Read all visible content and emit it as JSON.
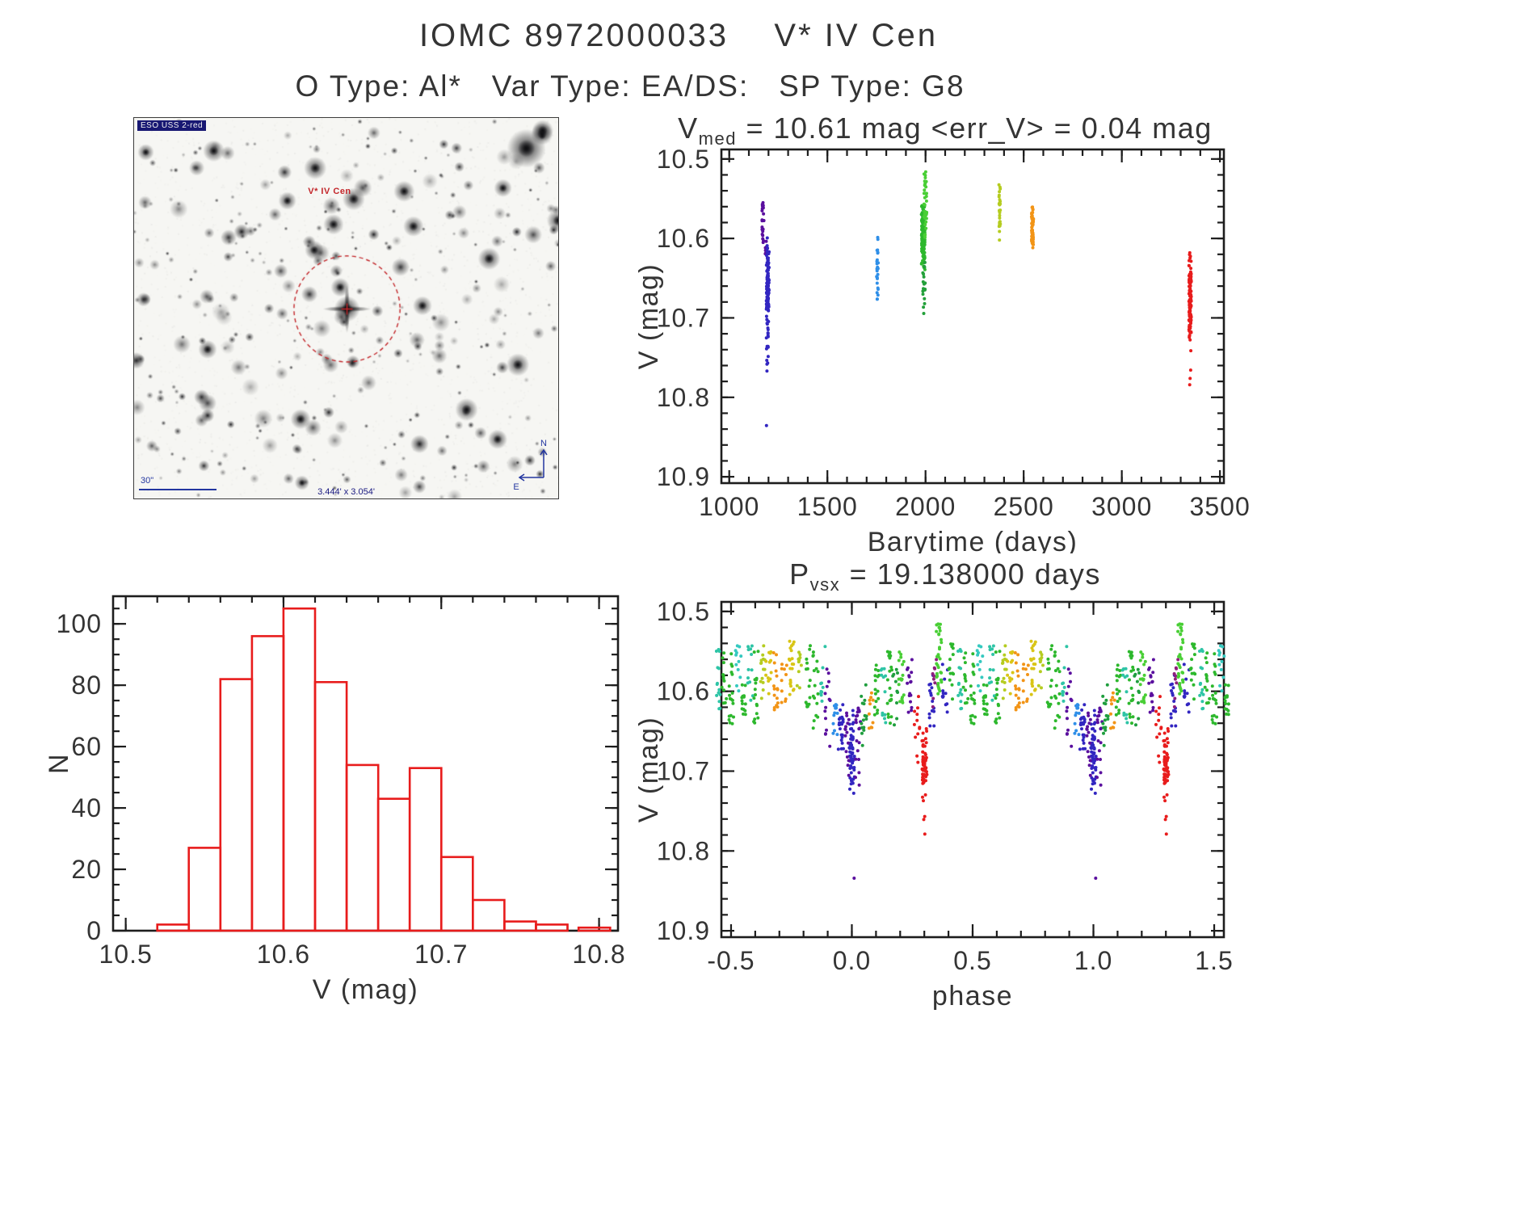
{
  "page": {
    "title": "IOMC 8972000033    V* IV Cen",
    "subtitle": "O Type: Al*   Var Type: EA/DS:   SP Type: G8"
  },
  "finding_chart": {
    "survey_label": "ESO USS 2-red",
    "target_label": "V* IV Cen",
    "scale_label": "30\"",
    "fov_label": "3.444' x 3.054'",
    "north_label": "N",
    "east_label": "E"
  },
  "chart_data": [
    {
      "id": "lightcurve",
      "type": "scatter",
      "title": {
        "pre": "V",
        "sub": "med",
        "post": " = 10.61 mag <err_V> = 0.04 mag"
      },
      "xlabel": "Barytime (days)",
      "ylabel": "V (mag)",
      "xlim": [
        960,
        3520
      ],
      "ylim": [
        10.488,
        10.908
      ],
      "y_inverted_magnitudes": true,
      "grid": false,
      "xticks": [
        1000,
        1500,
        2000,
        2500,
        3000,
        3500
      ],
      "xtick_labels": [
        "1000",
        "1500",
        "2000",
        "2500",
        "3000",
        "3500"
      ],
      "yticks": [
        10.5,
        10.6,
        10.7,
        10.8,
        10.9
      ],
      "ytick_labels": [
        "10.5",
        "10.6",
        "10.7",
        "10.8",
        "10.9"
      ],
      "x_minor": 100,
      "y_minor": 0.02,
      "median_V_mag": 10.61,
      "mean_err_V_mag": 0.04,
      "clusters": [
        {
          "x": 1172,
          "sx": 5,
          "y0": 10.555,
          "y1": 10.607,
          "n": 22,
          "color": "#5a0f9e",
          "dist": "uniform"
        },
        {
          "x": 1186,
          "sx": 3,
          "y0": 10.6,
          "y1": 10.625,
          "n": 6,
          "color": "#5a0f9e",
          "dist": "uniform"
        },
        {
          "x": 1196,
          "sx": 7,
          "y0": 10.585,
          "y1": 10.75,
          "n": 125,
          "color": "#3226c1",
          "dist": "center"
        },
        {
          "x": 1194,
          "sx": 5,
          "y0": 10.7,
          "y1": 10.77,
          "n": 10,
          "color": "#3226c1",
          "dist": "uniform"
        },
        {
          "x": 1190,
          "sx": 1,
          "y0": 10.833,
          "y1": 10.837,
          "n": 1,
          "color": "#3226c1",
          "dist": "uniform"
        },
        {
          "x": 1755,
          "sx": 4,
          "y0": 10.597,
          "y1": 10.683,
          "n": 26,
          "color": "#2f8fe8",
          "dist": "uniform"
        },
        {
          "x": 1988,
          "sx": 9,
          "y0": 10.535,
          "y1": 10.655,
          "n": 150,
          "color": "#2db82d",
          "dist": "center"
        },
        {
          "x": 1999,
          "sx": 7,
          "y0": 10.515,
          "y1": 10.6,
          "n": 40,
          "color": "#49cf35",
          "dist": "uniform"
        },
        {
          "x": 1992,
          "sx": 6,
          "y0": 10.63,
          "y1": 10.695,
          "n": 18,
          "color": "#23a03a",
          "dist": "uniform"
        },
        {
          "x": 2378,
          "sx": 4,
          "y0": 10.53,
          "y1": 10.603,
          "n": 30,
          "color": "#b5cc20",
          "dist": "uniform"
        },
        {
          "x": 2545,
          "sx": 5,
          "y0": 10.54,
          "y1": 10.632,
          "n": 55,
          "color": "#f29416",
          "dist": "center"
        },
        {
          "x": 3348,
          "sx": 6,
          "y0": 10.6,
          "y1": 10.755,
          "n": 115,
          "color": "#e81c1c",
          "dist": "center"
        },
        {
          "x": 3348,
          "sx": 3,
          "y0": 10.755,
          "y1": 10.785,
          "n": 3,
          "color": "#e81c1c",
          "dist": "uniform"
        }
      ]
    },
    {
      "id": "histogram",
      "type": "bar",
      "title": "",
      "xlabel": "V (mag)",
      "ylabel": "N",
      "xlim": [
        10.492,
        10.812
      ],
      "ylim": [
        109,
        0
      ],
      "grid": false,
      "xticks": [
        10.5,
        10.6,
        10.7,
        10.8
      ],
      "xtick_labels": [
        "10.5",
        "10.6",
        "10.7",
        "10.8"
      ],
      "yticks": [
        0,
        20,
        40,
        60,
        80,
        100
      ],
      "ytick_labels": [
        "0",
        "20",
        "40",
        "60",
        "80",
        "100"
      ],
      "x_minor": 0.02,
      "y_minor": 5,
      "bar_color": "#e81c1c",
      "bin_width": 0.02,
      "bins": [
        {
          "x0": 10.52,
          "n": 2
        },
        {
          "x0": 10.54,
          "n": 27
        },
        {
          "x0": 10.56,
          "n": 82
        },
        {
          "x0": 10.58,
          "n": 96
        },
        {
          "x0": 10.6,
          "n": 105
        },
        {
          "x0": 10.62,
          "n": 81
        },
        {
          "x0": 10.64,
          "n": 54
        },
        {
          "x0": 10.66,
          "n": 43
        },
        {
          "x0": 10.68,
          "n": 53
        },
        {
          "x0": 10.7,
          "n": 24
        },
        {
          "x0": 10.72,
          "n": 10
        },
        {
          "x0": 10.74,
          "n": 3
        },
        {
          "x0": 10.76,
          "n": 2
        },
        {
          "x0": 10.787,
          "n": 1
        }
      ]
    },
    {
      "id": "phase-folded",
      "type": "scatter",
      "title": {
        "pre": "P",
        "sub": "vsx",
        "post": " = 19.138000 days"
      },
      "period_days": 19.138,
      "xlabel": "phase",
      "ylabel": "V (mag)",
      "xlim": [
        -0.54,
        1.54
      ],
      "ylim": [
        10.488,
        10.908
      ],
      "grid": false,
      "xticks": [
        -0.5,
        0.0,
        0.5,
        1.0,
        1.5
      ],
      "xtick_labels": [
        "-0.5",
        "0.0",
        "0.5",
        "1.0",
        "1.5"
      ],
      "yticks": [
        10.5,
        10.6,
        10.7,
        10.8,
        10.9
      ],
      "ytick_labels": [
        "10.5",
        "10.6",
        "10.7",
        "10.8",
        "10.9"
      ],
      "x_minor": 0.1,
      "y_minor": 0.02,
      "strips": [
        {
          "p": 0.0,
          "y0": 10.6,
          "y1": 10.745,
          "n": 55,
          "color": "#3226c1",
          "dist": "center"
        },
        {
          "p": 0.005,
          "y0": 10.833,
          "y1": 10.837,
          "n": 1,
          "color": "#5a0f9e",
          "dist": "uniform"
        },
        {
          "p": 0.025,
          "y0": 10.61,
          "y1": 10.72,
          "n": 20,
          "color": "#5a0f9e",
          "dist": "uniform"
        },
        {
          "p": 0.05,
          "y0": 10.59,
          "y1": 10.67,
          "n": 15,
          "color": "#1f9e3e",
          "dist": "uniform"
        },
        {
          "p": 0.08,
          "y0": 10.6,
          "y1": 10.66,
          "n": 10,
          "color": "#f29416",
          "dist": "uniform"
        },
        {
          "p": 0.105,
          "y0": 10.56,
          "y1": 10.63,
          "n": 16,
          "color": "#2db82d",
          "dist": "uniform"
        },
        {
          "p": 0.13,
          "y0": 10.57,
          "y1": 10.64,
          "n": 12,
          "color": "#2ec4a6",
          "dist": "uniform"
        },
        {
          "p": 0.155,
          "y0": 10.55,
          "y1": 10.64,
          "n": 20,
          "color": "#2db82d",
          "dist": "uniform"
        },
        {
          "p": 0.18,
          "y0": 10.57,
          "y1": 10.65,
          "n": 10,
          "color": "#1f9e3e",
          "dist": "uniform"
        },
        {
          "p": 0.205,
          "y0": 10.54,
          "y1": 10.62,
          "n": 18,
          "color": "#49cf35",
          "dist": "uniform"
        },
        {
          "p": 0.24,
          "y0": 10.55,
          "y1": 10.63,
          "n": 16,
          "color": "#5a0f9e",
          "dist": "uniform"
        },
        {
          "p": 0.27,
          "y0": 10.6,
          "y1": 10.7,
          "n": 12,
          "color": "#e81c1c",
          "dist": "uniform"
        },
        {
          "p": 0.3,
          "y0": 10.63,
          "y1": 10.755,
          "n": 60,
          "color": "#e81c1c",
          "dist": "center"
        },
        {
          "p": 0.3,
          "y0": 10.755,
          "y1": 10.785,
          "n": 3,
          "color": "#e81c1c",
          "dist": "uniform"
        },
        {
          "p": 0.33,
          "y0": 10.57,
          "y1": 10.65,
          "n": 16,
          "color": "#3226c1",
          "dist": "uniform"
        },
        {
          "p": 0.345,
          "y0": 10.55,
          "y1": 10.62,
          "n": 10,
          "color": "#8e1f7c",
          "dist": "uniform"
        },
        {
          "p": 0.36,
          "y0": 10.515,
          "y1": 10.605,
          "n": 35,
          "color": "#49cf35",
          "dist": "uniform"
        },
        {
          "p": 0.385,
          "y0": 10.56,
          "y1": 10.63,
          "n": 12,
          "color": "#3226c1",
          "dist": "uniform"
        },
        {
          "p": 0.41,
          "y0": 10.54,
          "y1": 10.61,
          "n": 16,
          "color": "#2db82d",
          "dist": "uniform"
        },
        {
          "p": 0.445,
          "y0": 10.54,
          "y1": 10.63,
          "n": 14,
          "color": "#2ec4a6",
          "dist": "uniform"
        },
        {
          "p": 0.47,
          "y0": 10.55,
          "y1": 10.63,
          "n": 12,
          "color": "#2db82d",
          "dist": "uniform"
        },
        {
          "p": 0.5,
          "y0": 10.55,
          "y1": 10.66,
          "n": 18,
          "color": "#2db82d",
          "dist": "uniform"
        },
        {
          "p": 0.53,
          "y0": 10.54,
          "y1": 10.61,
          "n": 12,
          "color": "#35c9c0",
          "dist": "uniform"
        },
        {
          "p": 0.555,
          "y0": 10.56,
          "y1": 10.63,
          "n": 14,
          "color": "#2db82d",
          "dist": "uniform"
        },
        {
          "p": 0.58,
          "y0": 10.54,
          "y1": 10.62,
          "n": 12,
          "color": "#2ec4a6",
          "dist": "uniform"
        },
        {
          "p": 0.605,
          "y0": 10.55,
          "y1": 10.64,
          "n": 16,
          "color": "#2db82d",
          "dist": "uniform"
        },
        {
          "p": 0.63,
          "y0": 10.53,
          "y1": 10.61,
          "n": 14,
          "color": "#b5cc20",
          "dist": "uniform"
        },
        {
          "p": 0.655,
          "y0": 10.54,
          "y1": 10.61,
          "n": 12,
          "color": "#d9c516",
          "dist": "uniform"
        },
        {
          "p": 0.685,
          "y0": 10.55,
          "y1": 10.63,
          "n": 16,
          "color": "#f29416",
          "dist": "uniform"
        },
        {
          "p": 0.72,
          "y0": 10.56,
          "y1": 10.63,
          "n": 10,
          "color": "#f29416",
          "dist": "uniform"
        },
        {
          "p": 0.75,
          "y0": 10.53,
          "y1": 10.605,
          "n": 20,
          "color": "#d9c516",
          "dist": "uniform"
        },
        {
          "p": 0.78,
          "y0": 10.55,
          "y1": 10.6,
          "n": 10,
          "color": "#b5cc20",
          "dist": "uniform"
        },
        {
          "p": 0.82,
          "y0": 10.54,
          "y1": 10.62,
          "n": 14,
          "color": "#2db82d",
          "dist": "uniform"
        },
        {
          "p": 0.85,
          "y0": 10.55,
          "y1": 10.65,
          "n": 16,
          "color": "#2db82d",
          "dist": "uniform"
        },
        {
          "p": 0.88,
          "y0": 10.54,
          "y1": 10.62,
          "n": 10,
          "color": "#2ec4a6",
          "dist": "uniform"
        },
        {
          "p": 0.9,
          "y0": 10.57,
          "y1": 10.67,
          "n": 14,
          "color": "#5a0f9e",
          "dist": "uniform"
        },
        {
          "p": 0.93,
          "y0": 10.6,
          "y1": 10.66,
          "n": 12,
          "color": "#2f8fe8",
          "dist": "uniform"
        },
        {
          "p": 0.955,
          "y0": 10.6,
          "y1": 10.7,
          "n": 25,
          "color": "#3226c1",
          "dist": "center"
        },
        {
          "p": 0.98,
          "y0": 10.61,
          "y1": 10.71,
          "n": 15,
          "color": "#5a0f9e",
          "dist": "uniform"
        }
      ]
    }
  ]
}
